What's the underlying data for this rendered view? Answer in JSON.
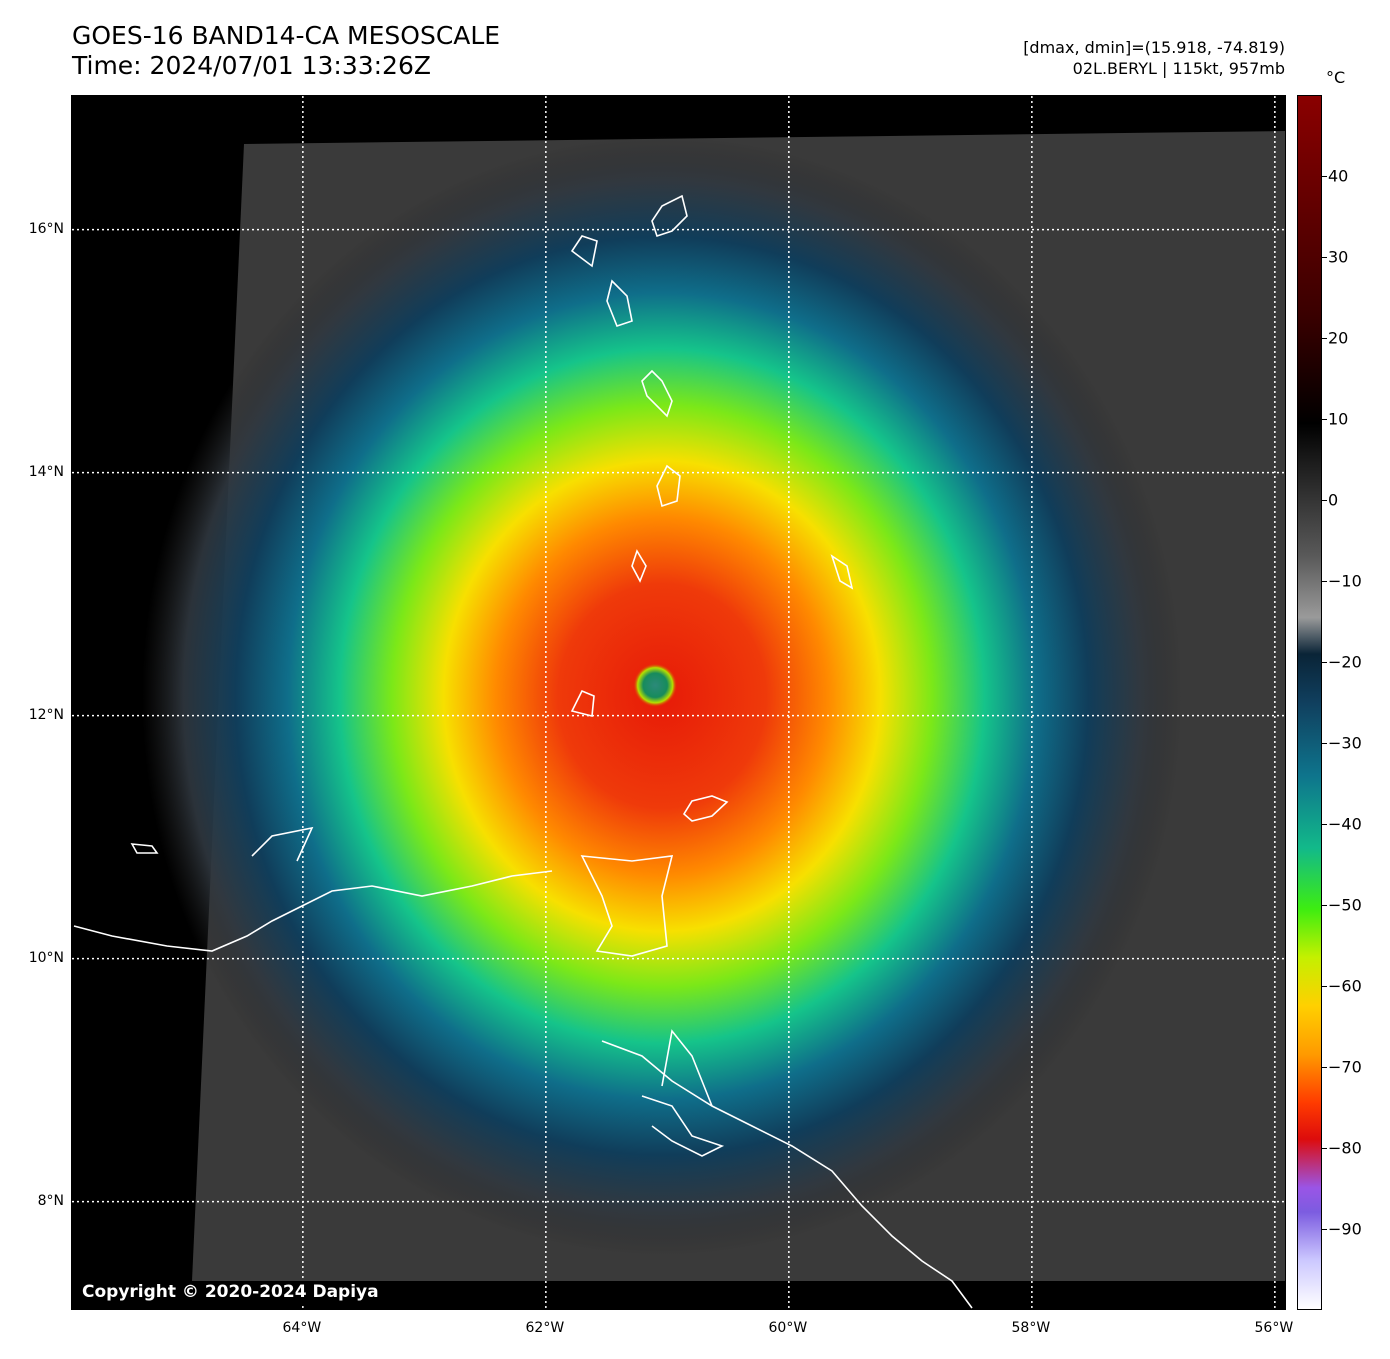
{
  "header": {
    "title": "GOES-16 BAND14-CA MESOSCALE",
    "time": "Time: 2024/07/01 13:33:26Z",
    "dmax_dmin": "[dmax, dmin]=(15.918, -74.819)",
    "storm": "02L.BERYL | 115kt, 957mb"
  },
  "map": {
    "copyright": "Copyright © 2020-2024 Dapiya",
    "lat_labels": [
      "16°N",
      "14°N",
      "12°N",
      "10°N",
      "8°N"
    ],
    "lon_labels": [
      "64°W",
      "62°W",
      "60°W",
      "58°W",
      "56°W"
    ],
    "lat_values": [
      16,
      14,
      12,
      10,
      8
    ],
    "lon_values": [
      -64,
      -62,
      -60,
      -58,
      -56
    ],
    "extent": {
      "lon_min": -65.9,
      "lon_max": -55.9,
      "lat_min": 7.1,
      "lat_max": 17.1
    },
    "eye": {
      "lon": -61.1,
      "lat": 12.25
    }
  },
  "colorbar": {
    "unit": "°C",
    "range": [
      -100,
      50
    ],
    "ticks": [
      "40",
      "30",
      "20",
      "10",
      "0",
      "−10",
      "−20",
      "−30",
      "−40",
      "−50",
      "−60",
      "−70",
      "−80",
      "−90"
    ],
    "tick_values": [
      40,
      30,
      20,
      10,
      0,
      -10,
      -20,
      -30,
      -40,
      -50,
      -60,
      -70,
      -80,
      -90
    ]
  }
}
